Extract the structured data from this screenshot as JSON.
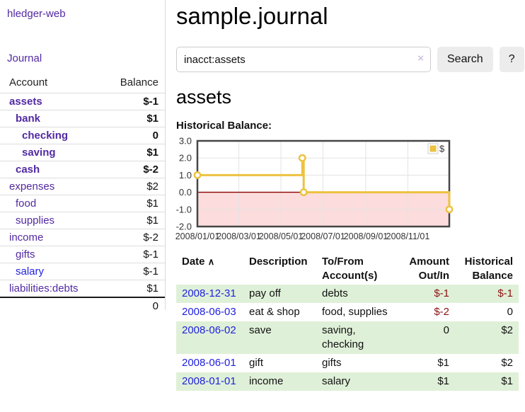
{
  "app": {
    "brand": "hledger-web"
  },
  "sidebar": {
    "journal_label": "Journal",
    "table": {
      "account_header": "Account",
      "balance_header": "Balance",
      "rows": [
        {
          "account": "assets",
          "balance": "$-1",
          "level": 0,
          "bold": true,
          "neg": "strong"
        },
        {
          "account": "bank",
          "balance": "$1",
          "level": 1,
          "bold": true
        },
        {
          "account": "checking",
          "balance": "0",
          "level": 2,
          "bold": true
        },
        {
          "account": "saving",
          "balance": "$1",
          "level": 2,
          "bold": true
        },
        {
          "account": "cash",
          "balance": "$-2",
          "level": 1,
          "bold": true,
          "neg": "strong"
        },
        {
          "account": "expenses",
          "balance": "$2",
          "level": 0
        },
        {
          "account": "food",
          "balance": "$1",
          "level": 1
        },
        {
          "account": "supplies",
          "balance": "$1",
          "level": 1
        },
        {
          "account": "income",
          "balance": "$-2",
          "level": 0,
          "neg": "soft"
        },
        {
          "account": "gifts",
          "balance": "$-1",
          "level": 1,
          "neg": "soft"
        },
        {
          "account": "salary",
          "balance": "$-1",
          "level": 1,
          "neg": "soft",
          "blue": true
        },
        {
          "account": "liabilities:debts",
          "balance": "$1",
          "level": 0
        }
      ],
      "total": "0"
    }
  },
  "header": {
    "title": "sample.journal"
  },
  "search": {
    "value": "inacct:assets",
    "clear_icon": "×",
    "button_label": "Search",
    "help_label": "?"
  },
  "account_page": {
    "heading": "assets",
    "chart_label": "Historical Balance:"
  },
  "chart_data": {
    "type": "line",
    "step": true,
    "series": [
      {
        "name": "$",
        "color": "#edc240",
        "points": [
          [
            "2008-01-01",
            1
          ],
          [
            "2008-06-01",
            2
          ],
          [
            "2008-06-03",
            0
          ],
          [
            "2008-12-31",
            -1
          ]
        ]
      }
    ],
    "x_range": [
      "2008-01-01",
      "2008-12-31"
    ],
    "y_range": [
      -2,
      3
    ],
    "y_ticks": [
      3,
      2,
      1,
      0,
      -1,
      -2
    ],
    "y_tick_labels": [
      "3.0",
      "2.0",
      "1.0",
      "0.0",
      "-1.0",
      "-2.0"
    ],
    "x_tick_dates": [
      "2008-01-01",
      "2008-03-01",
      "2008-05-01",
      "2008-07-01",
      "2008-09-01",
      "2008-11-01"
    ],
    "x_tick_labels": [
      "2008/01/01",
      "2008/03/01",
      "2008/05/01",
      "2008/07/01",
      "2008/09/01",
      "2008/11/01"
    ],
    "legend": "$",
    "legend_position": "top-right",
    "grid": true,
    "colors": {
      "grid": "#e3e3e3",
      "border": "#464646",
      "negative_region": "#fcdcdc",
      "zero_line": "#8b0000"
    }
  },
  "register": {
    "headers": {
      "date": "Date",
      "sort_icon": "∧",
      "description": "Description",
      "accounts": "To/From Account(s)",
      "amount": "Amount Out/In",
      "balance": "Historical Balance"
    },
    "rows": [
      {
        "date": "2008-12-31",
        "description": "pay off",
        "accounts": "debts",
        "amount": "$-1",
        "amount_neg": true,
        "balance": "$-1",
        "balance_neg": true
      },
      {
        "date": "2008-06-03",
        "description": "eat & shop",
        "accounts": "food, supplies",
        "amount": "$-2",
        "amount_neg": true,
        "balance": "0"
      },
      {
        "date": "2008-06-02",
        "description": "save",
        "accounts": "saving, checking",
        "amount": "0",
        "balance": "$2"
      },
      {
        "date": "2008-06-01",
        "description": "gift",
        "accounts": "gifts",
        "amount": "$1",
        "balance": "$2"
      },
      {
        "date": "2008-01-01",
        "description": "income",
        "accounts": "salary",
        "amount": "$1",
        "balance": "$1"
      }
    ]
  }
}
